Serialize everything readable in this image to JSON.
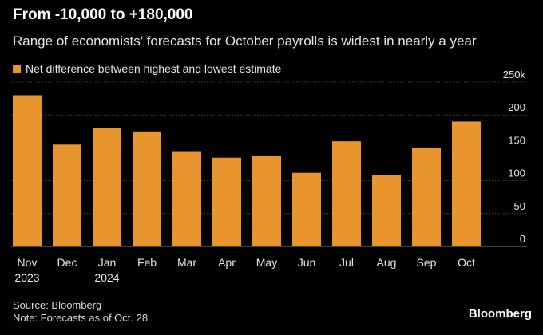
{
  "colors": {
    "background": "#000000",
    "bar": "#e8952f",
    "grid": "#555555",
    "text": "#e6e6e6"
  },
  "chart_data": {
    "type": "bar",
    "title": "From -10,000 to +180,000",
    "subtitle": "Range of economists' forecasts for October payrolls is widest in nearly a year",
    "series": [
      {
        "name": "Net difference between highest and lowest estimate",
        "values": [
          230000,
          155000,
          180000,
          175000,
          145000,
          135000,
          138000,
          112000,
          160000,
          108000,
          150000,
          190000
        ]
      }
    ],
    "categories": [
      "Nov",
      "Dec",
      "Jan",
      "Feb",
      "Mar",
      "Apr",
      "May",
      "Jun",
      "Jul",
      "Aug",
      "Sep",
      "Oct"
    ],
    "category_sublabels": [
      "2023",
      "",
      "2024",
      "",
      "",
      "",
      "",
      "",
      "",
      "",
      "",
      ""
    ],
    "y_ticks": [
      0,
      50,
      100,
      150,
      200,
      250
    ],
    "y_tick_labels": [
      "0",
      "50",
      "100",
      "150",
      "200",
      "250k"
    ],
    "ylim": [
      0,
      250000
    ],
    "grid": true,
    "y_axis_position": "right",
    "legend_position": "top-left"
  },
  "footer": {
    "source": "Source: Bloomberg",
    "note": "Note: Forecasts as of Oct. 28",
    "brand": "Bloomberg"
  }
}
